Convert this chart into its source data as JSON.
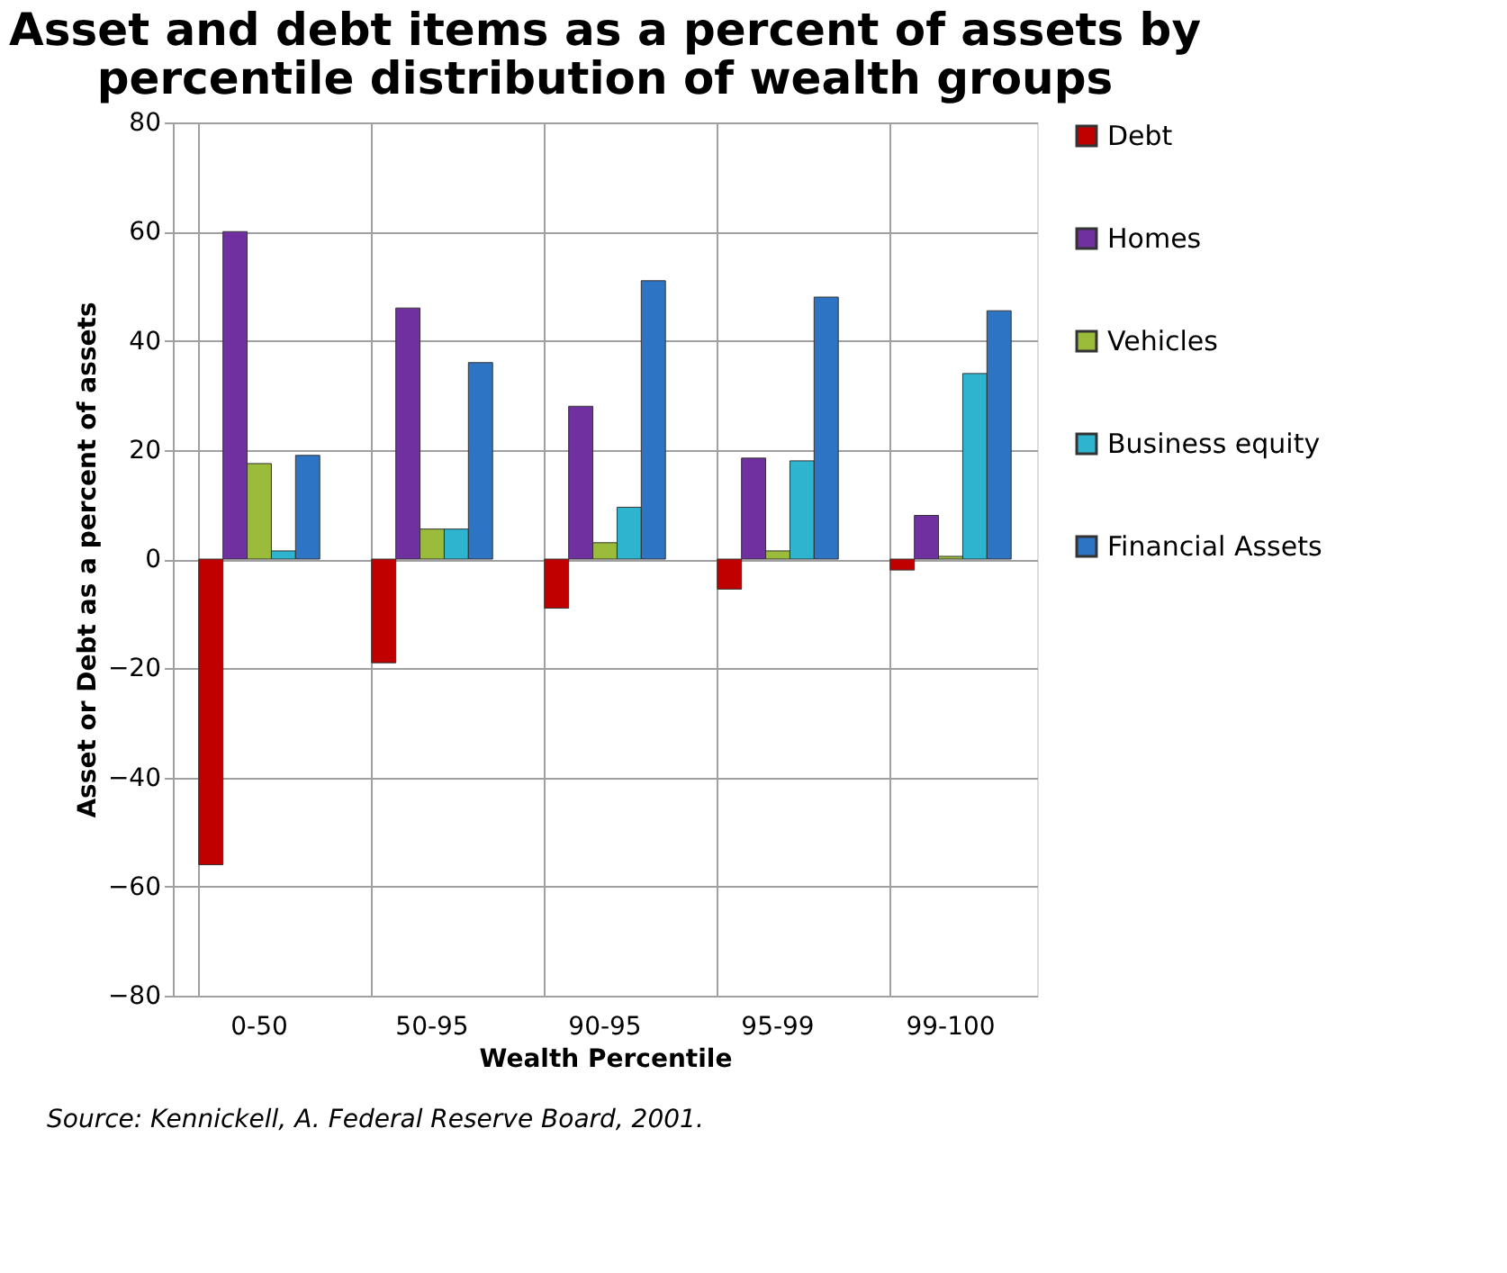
{
  "chart_data": {
    "type": "bar",
    "title": "Asset and debt items as a percent of assets by percentile distribution of wealth groups",
    "xlabel": "Wealth Percentile",
    "ylabel": "Asset or Debt as a percent of assets",
    "categories": [
      "0-50",
      "50-95",
      "90-95",
      "95-99",
      "99-100"
    ],
    "series": [
      {
        "name": "Debt",
        "color": "#c00000",
        "values": [
          -56,
          -19,
          -9,
          -5.5,
          -2
        ]
      },
      {
        "name": "Homes",
        "color": "#7030a0",
        "values": [
          60,
          46,
          28,
          18.5,
          8
        ]
      },
      {
        "name": "Vehicles",
        "color": "#9bbb3b",
        "values": [
          17.5,
          5.5,
          3,
          1.5,
          0.5
        ]
      },
      {
        "name": "Business equity",
        "color": "#2fb4d0",
        "values": [
          1.5,
          5.5,
          9.5,
          18,
          34
        ]
      },
      {
        "name": "Financial Assets",
        "color": "#2e74c4",
        "values": [
          19,
          36,
          51,
          48,
          45.5
        ]
      }
    ],
    "ylim": [
      -80,
      80
    ],
    "yticks": [
      -80,
      -60,
      -40,
      -20,
      0,
      20,
      40,
      60,
      80
    ],
    "grid": true,
    "legend": "right",
    "annotations": [
      "Source:  Kennickell, A.  Federal Reserve Board, 2001."
    ]
  }
}
